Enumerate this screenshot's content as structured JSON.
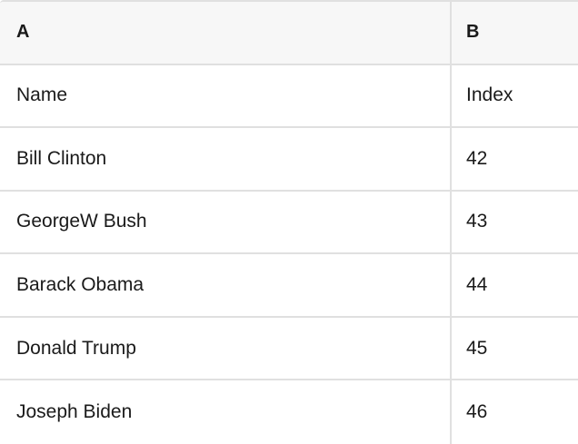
{
  "colors": {
    "header_bg": "#f7f7f7",
    "border": "#e0e0e0",
    "text": "#1a1a1a",
    "row_bg": "#ffffff"
  },
  "table": {
    "column_headers": [
      {
        "label": "A"
      },
      {
        "label": "B"
      }
    ],
    "rows": [
      {
        "a": "Name",
        "b": "Index"
      },
      {
        "a": "Bill Clinton",
        "b": "42"
      },
      {
        "a": "GeorgeW Bush",
        "b": "43"
      },
      {
        "a": "Barack Obama",
        "b": "44"
      },
      {
        "a": "Donald Trump",
        "b": "45"
      },
      {
        "a": "Joseph Biden",
        "b": "46"
      }
    ]
  }
}
